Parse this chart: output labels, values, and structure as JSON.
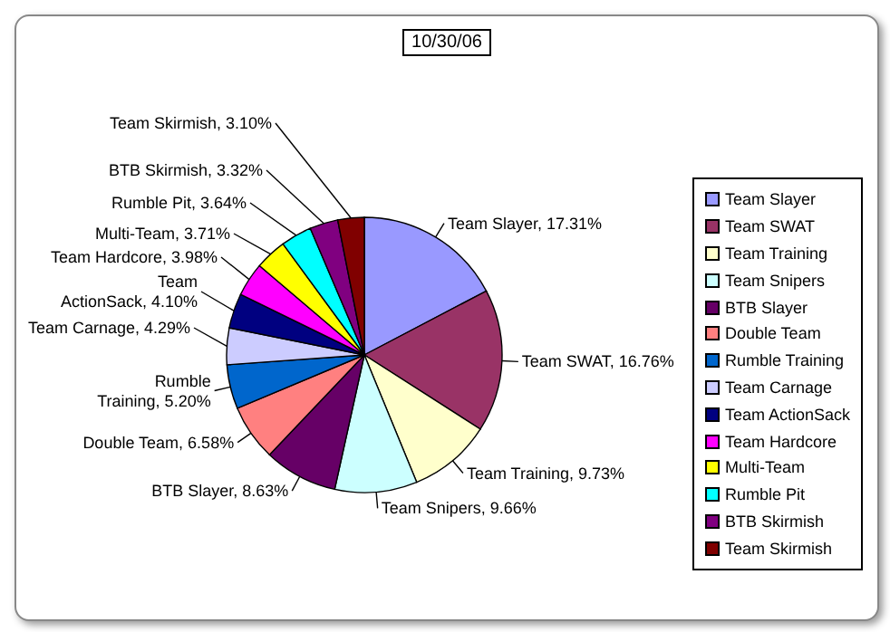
{
  "chart_data": {
    "type": "pie",
    "title": "10/30/06",
    "categories": [
      "Team Slayer",
      "Team SWAT",
      "Team Training",
      "Team Snipers",
      "BTB Slayer",
      "Double Team",
      "Rumble Training",
      "Team Carnage",
      "Team ActionSack",
      "Team Hardcore",
      "Multi-Team",
      "Rumble Pit",
      "BTB Skirmish",
      "Team Skirmish"
    ],
    "values": [
      17.31,
      16.76,
      9.73,
      9.66,
      8.63,
      6.58,
      5.2,
      4.29,
      4.1,
      3.98,
      3.71,
      3.64,
      3.32,
      3.1
    ],
    "colors": [
      "#9999ff",
      "#993366",
      "#ffffcc",
      "#ccffff",
      "#660066",
      "#ff8080",
      "#0066cc",
      "#ccccff",
      "#000080",
      "#ff00ff",
      "#ffff00",
      "#00ffff",
      "#800080",
      "#800000"
    ],
    "value_labels": [
      "Team Slayer, 17.31%",
      "Team SWAT, 16.76%",
      "Team Training, 9.73%",
      "Team Snipers, 9.66%",
      "BTB Slayer, 8.63%",
      "Double Team, 6.58%",
      "Rumble Training, 5.20%",
      "Team Carnage, 4.29%",
      "Team ActionSack, 4.10%",
      "Team Hardcore, 3.98%",
      "Multi-Team, 3.71%",
      "Rumble Pit, 3.64%",
      "BTB Skirmish, 3.32%",
      "Team Skirmish, 3.10%"
    ],
    "legend": "right"
  }
}
